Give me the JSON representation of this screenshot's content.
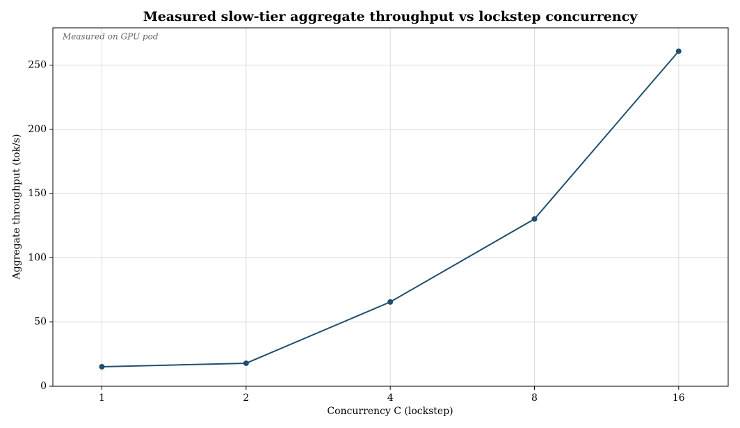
{
  "chart_data": {
    "type": "line",
    "title": "Measured slow-tier aggregate throughput vs lockstep concurrency",
    "annotation": "Measured on GPU pod",
    "x_label": "Concurrency C (lockstep)",
    "y_label": "Aggregate throughput (tok/s)",
    "x": [
      1,
      2,
      4,
      8,
      16
    ],
    "series": [
      {
        "name": "Aggregate throughput",
        "color": "#1f4e6e",
        "values": [
          15.2,
          17.9,
          65.6,
          130.2,
          260.8
        ]
      }
    ],
    "xscale": "log2",
    "xlim": [
      0.79,
      20.3
    ],
    "xticks": [
      1,
      2,
      4,
      8,
      16
    ],
    "ylim": [
      0,
      279
    ],
    "yticks": [
      0,
      50,
      100,
      150,
      200,
      250
    ],
    "grid": true
  }
}
